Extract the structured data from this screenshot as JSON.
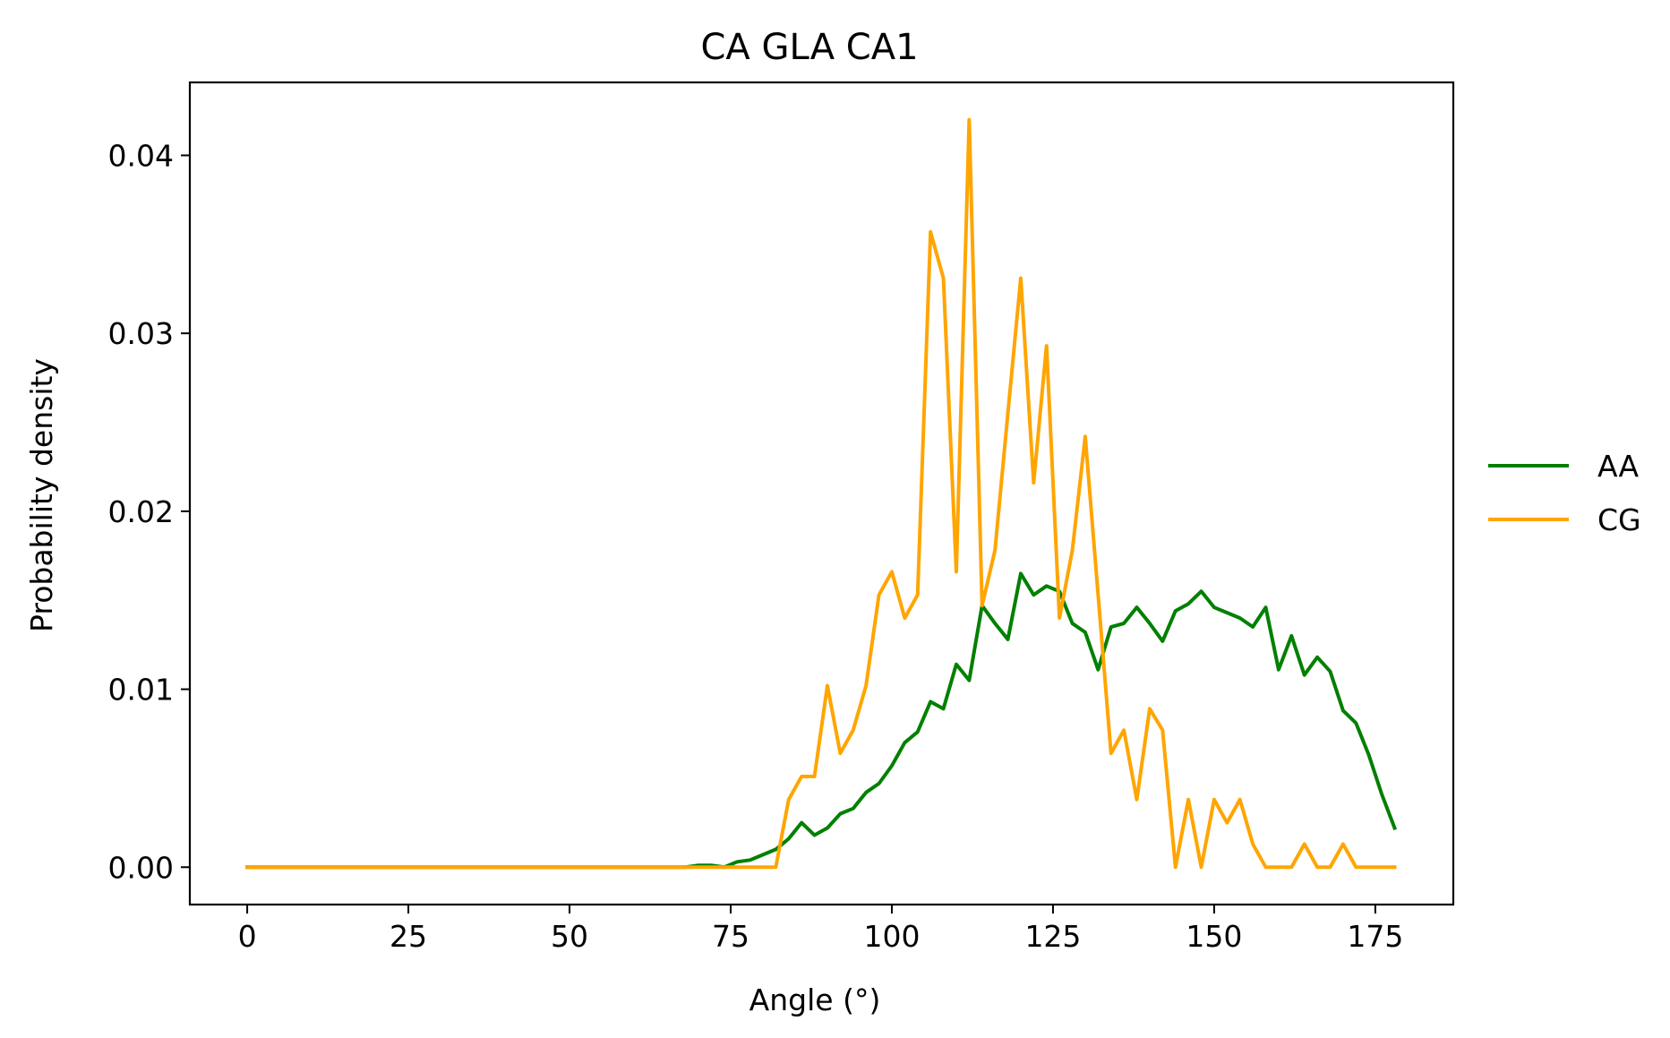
{
  "chart_data": {
    "type": "line",
    "title": "CA GLA CA1",
    "xlabel": "Angle (°)",
    "ylabel": "Probability density",
    "xlim": [
      -8.9,
      187.1
    ],
    "ylim": [
      -0.0021,
      0.0441
    ],
    "xticks": [
      0,
      25,
      50,
      75,
      100,
      125,
      150,
      175
    ],
    "xtick_labels": [
      "0",
      "25",
      "50",
      "75",
      "100",
      "125",
      "150",
      "175"
    ],
    "yticks": [
      0,
      0.01,
      0.02,
      0.03,
      0.04
    ],
    "ytick_labels": [
      "0.00",
      "0.01",
      "0.02",
      "0.03",
      "0.04"
    ],
    "grid": false,
    "legend": {
      "placement": "right, outside plot"
    },
    "x": [
      0,
      2,
      4,
      6,
      8,
      10,
      12,
      14,
      16,
      18,
      20,
      22,
      24,
      26,
      28,
      30,
      32,
      34,
      36,
      38,
      40,
      42,
      44,
      46,
      48,
      50,
      52,
      54,
      56,
      58,
      60,
      62,
      64,
      66,
      68,
      70,
      72,
      74,
      76,
      78,
      80,
      82,
      84,
      86,
      88,
      90,
      92,
      94,
      96,
      98,
      100,
      102,
      104,
      106,
      108,
      110,
      112,
      114,
      116,
      118,
      120,
      122,
      124,
      126,
      128,
      130,
      132,
      134,
      136,
      138,
      140,
      142,
      144,
      146,
      148,
      150,
      152,
      154,
      156,
      158,
      160,
      162,
      164,
      166,
      168,
      170,
      172,
      174,
      176,
      178
    ],
    "series": [
      {
        "name": "AA",
        "color": "#008000",
        "values": [
          0,
          0,
          0,
          0,
          0,
          0,
          0,
          0,
          0,
          0,
          0,
          0,
          0,
          0,
          0,
          0,
          0,
          0,
          0,
          0,
          0,
          0,
          0,
          0,
          0,
          0,
          0,
          0,
          0,
          0,
          0,
          0,
          0,
          0,
          0,
          0.0001,
          0.0001,
          0,
          0.0003,
          0.0004,
          0.0007,
          0.001,
          0.0016,
          0.0025,
          0.0018,
          0.0022,
          0.003,
          0.0033,
          0.0042,
          0.0047,
          0.0057,
          0.007,
          0.0076,
          0.0093,
          0.0089,
          0.0114,
          0.0105,
          0.0147,
          0.0137,
          0.0128,
          0.0165,
          0.0153,
          0.0158,
          0.0155,
          0.0137,
          0.0132,
          0.0111,
          0.0135,
          0.0137,
          0.0146,
          0.0137,
          0.0127,
          0.0144,
          0.0148,
          0.0155,
          0.0146,
          0.0143,
          0.014,
          0.0135,
          0.0146,
          0.0111,
          0.013,
          0.0108,
          0.0118,
          0.011,
          0.0088,
          0.0081,
          0.0063,
          0.0041,
          0.0022
        ]
      },
      {
        "name": "CG",
        "color": "#FFA500",
        "values": [
          0,
          0,
          0,
          0,
          0,
          0,
          0,
          0,
          0,
          0,
          0,
          0,
          0,
          0,
          0,
          0,
          0,
          0,
          0,
          0,
          0,
          0,
          0,
          0,
          0,
          0,
          0,
          0,
          0,
          0,
          0,
          0,
          0,
          0,
          0,
          0,
          0,
          0,
          0,
          0,
          0,
          0,
          0.0038,
          0.0051,
          0.0051,
          0.0102,
          0.0064,
          0.0077,
          0.0102,
          0.0153,
          0.0166,
          0.014,
          0.0153,
          0.0357,
          0.0331,
          0.0166,
          0.042,
          0.0147,
          0.0178,
          0.0255,
          0.0331,
          0.0216,
          0.0293,
          0.014,
          0.0178,
          0.0242,
          0.0153,
          0.0064,
          0.0077,
          0.0038,
          0.0089,
          0.0077,
          0,
          0.0038,
          0,
          0.0038,
          0.0025,
          0.0038,
          0.0013,
          0,
          0,
          0,
          0.0013,
          0,
          0,
          0.0013,
          0,
          0,
          0,
          0
        ]
      }
    ]
  }
}
